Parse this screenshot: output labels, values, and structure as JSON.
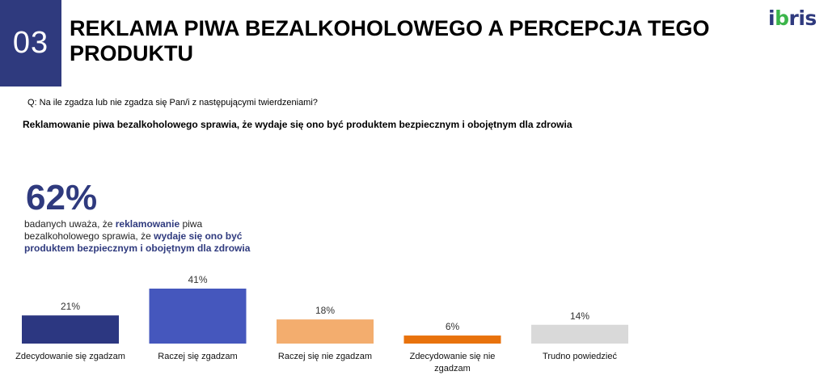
{
  "header": {
    "section_number": "03",
    "title": "REKLAMA PIWA BEZALKOHOLOWEGO A PERCEPCJA TEGO PRODUKTU",
    "logo_text": "ibris"
  },
  "question": "Q: Na ile zgadza lub nie zgadza się Pan/i z następującymi twierdzeniami?",
  "statement": "Reklamowanie piwa bezalkoholowego sprawia, że wydaje się ono być produktem bezpiecznym i obojętnym dla zdrowia",
  "highlight": {
    "big_number": "62%",
    "t1": "badanych uważa, że ",
    "h1": "reklamowanie",
    "t2": " piwa bezalkoholowego sprawia, że ",
    "h2": "wydaje się ono być produktem bezpiecznym i obojętnym dla zdrowia"
  },
  "colors": {
    "brand_dark": "#2f3a7e",
    "logo_green": "#3bb54a"
  },
  "chart_data": {
    "type": "bar",
    "categories": [
      "Zdecydowanie się zgadzam",
      "Raczej się zgadzam",
      "Raczej się nie zgadzam",
      "Zdecydowanie się nie zgadzam",
      "Trudno powiedzieć"
    ],
    "values": [
      21,
      41,
      18,
      6,
      14
    ],
    "value_labels": [
      "21%",
      "41%",
      "18%",
      "6%",
      "14%"
    ],
    "colors": [
      "#2c3781",
      "#4557bd",
      "#f3ad6e",
      "#e8720c",
      "#d9d9d9"
    ],
    "ylim": [
      0,
      41
    ],
    "grid": false,
    "legend": "none"
  }
}
